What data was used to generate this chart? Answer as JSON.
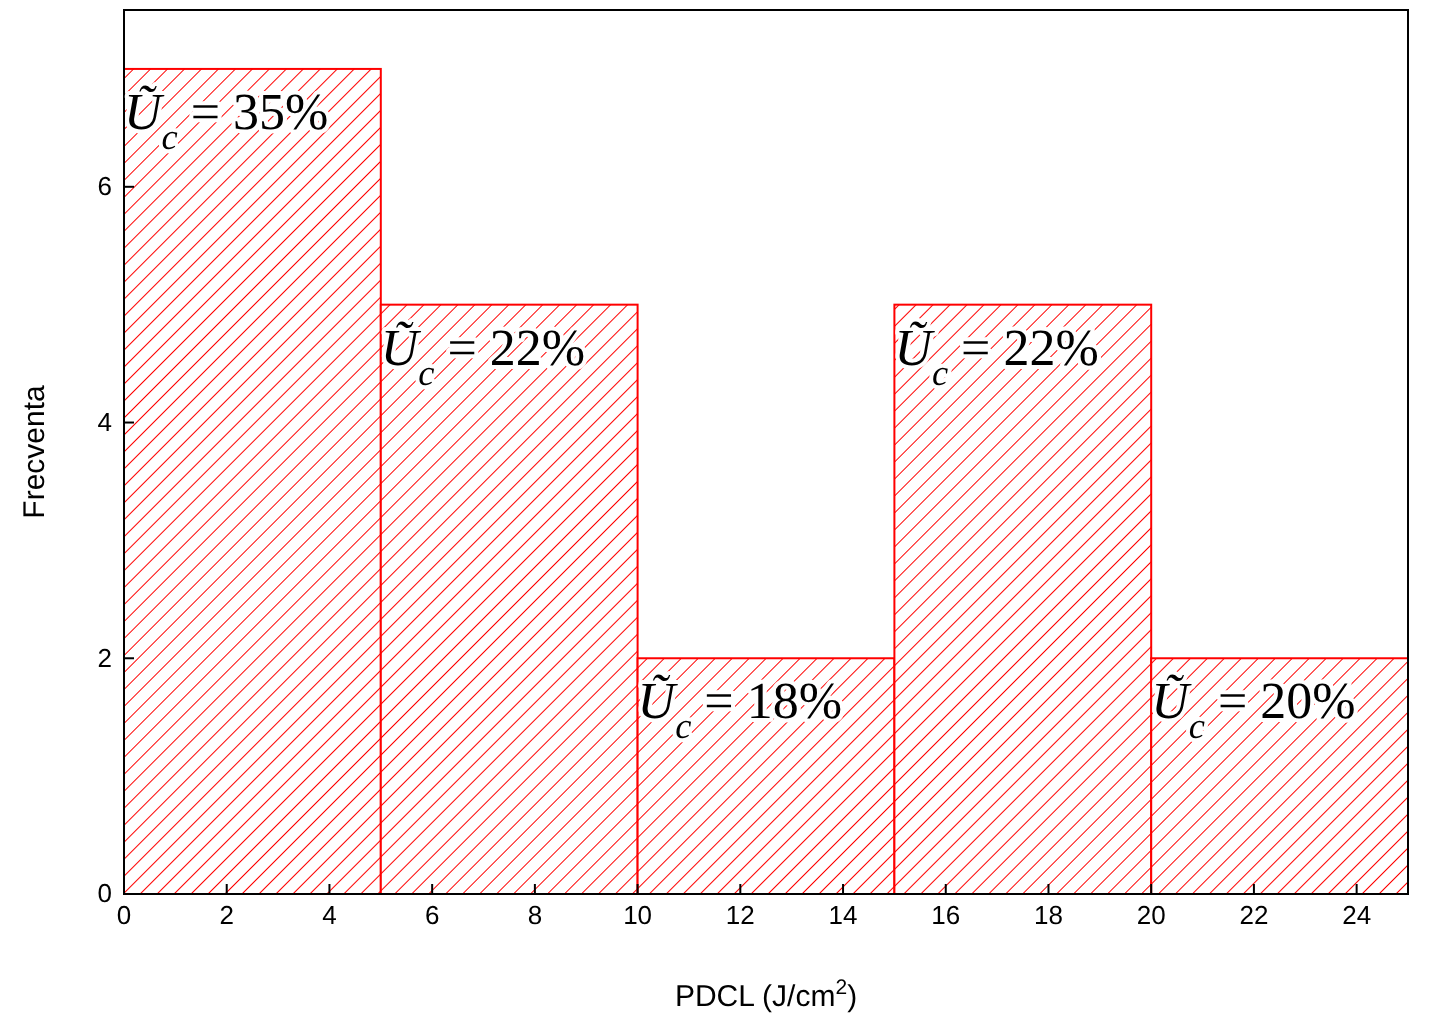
{
  "chart_data": {
    "type": "histogram",
    "bins": [
      0,
      5,
      10,
      15,
      20,
      25
    ],
    "values": [
      7,
      5,
      2,
      5,
      2
    ],
    "color": "#ff0000",
    "xlim": [
      0,
      25
    ],
    "xticks": [
      0,
      2,
      4,
      6,
      8,
      10,
      12,
      14,
      16,
      18,
      20,
      22,
      24
    ],
    "ylim": [
      0,
      7.5
    ],
    "yticks": [
      0,
      2,
      4,
      6
    ],
    "xlabel": "PDCL (J/cm$^{2}$)",
    "ylabel": "Frecventa",
    "annotations": [
      {
        "text": "Ũ$_{c}$ = 35%",
        "x": 0,
        "y": 7
      },
      {
        "text": "Ũ$_{c}$ = 22%",
        "x": 5,
        "y": 5
      },
      {
        "text": "Ũ$_{c}$ = 18%",
        "x": 10,
        "y": 2
      },
      {
        "text": "Ũ$_{c}$ = 22%",
        "x": 15,
        "y": 5
      },
      {
        "text": "Ũ$_{c}$ = 20%",
        "x": 20,
        "y": 2
      }
    ],
    "grid": false
  }
}
